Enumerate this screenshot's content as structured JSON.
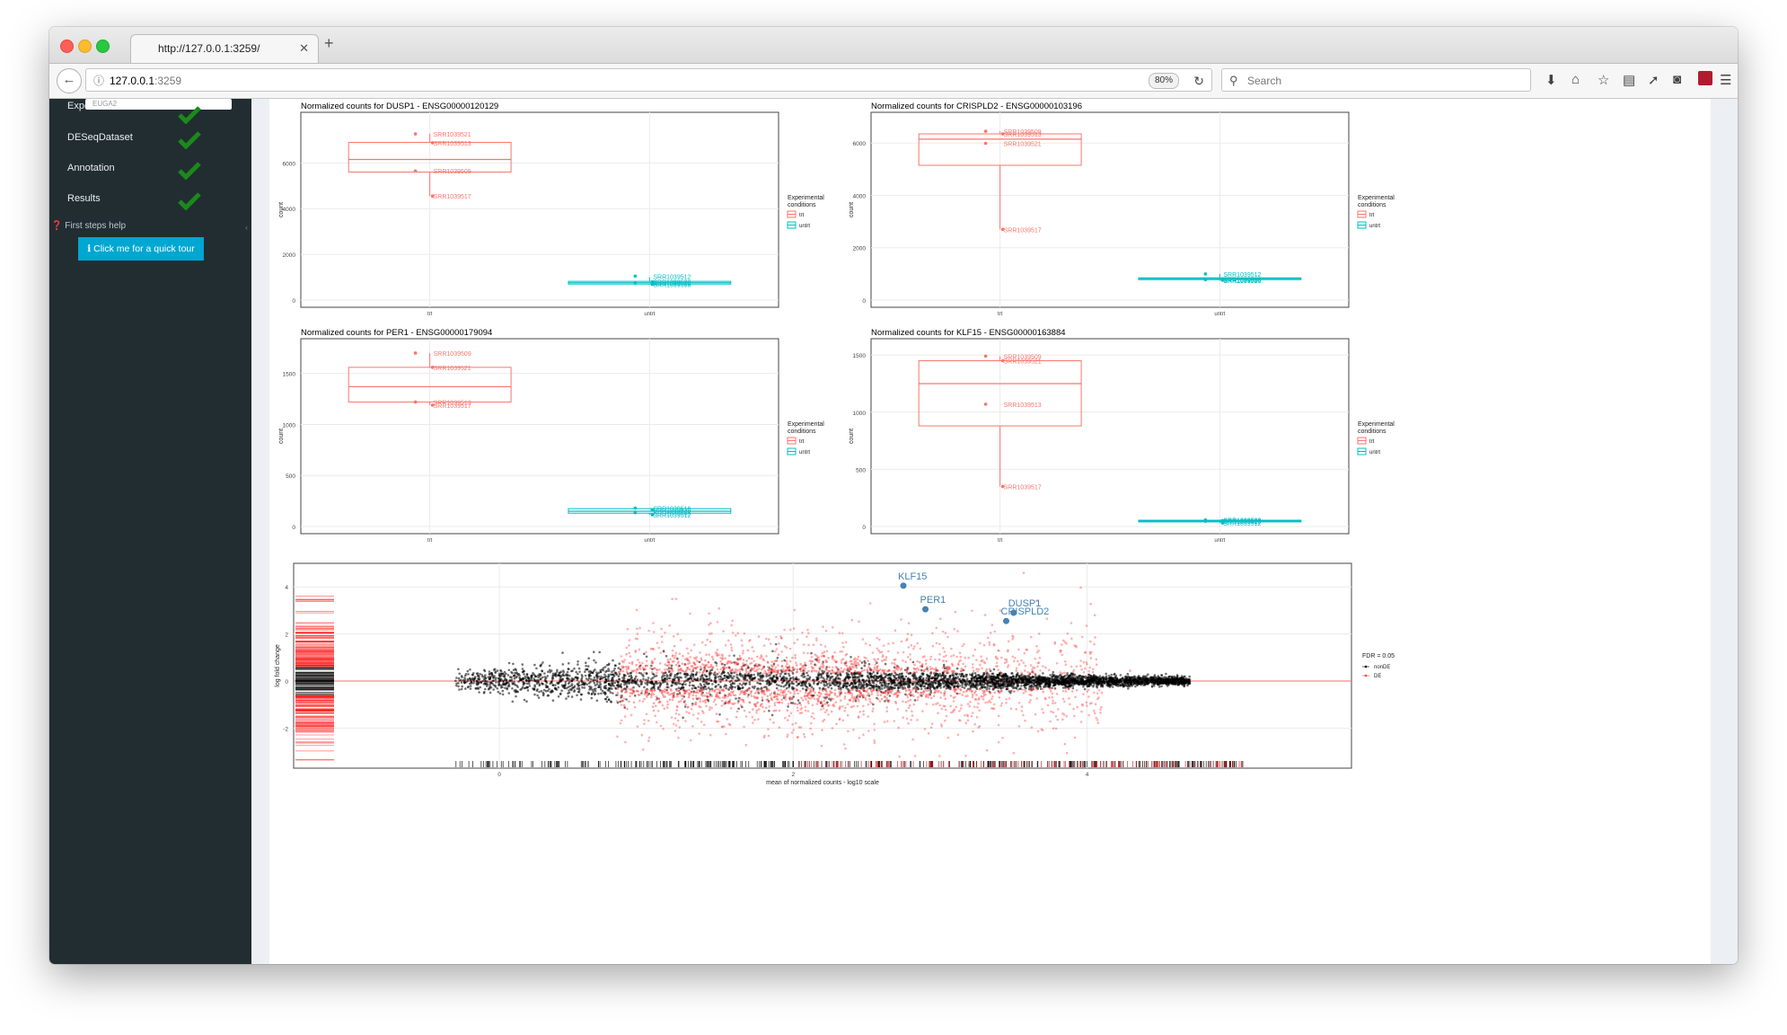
{
  "browser": {
    "tab_title": "http://127.0.0.1:3259/",
    "url_host": "127.0.0.1",
    "url_port": ":3259",
    "zoom": "80%",
    "search_placeholder": "Search"
  },
  "sidebar": {
    "hidden_item_prefix": "Expe",
    "tooltip_fragment": "EUGA2",
    "items": [
      {
        "label": "DESeqDataset"
      },
      {
        "label": "Annotation"
      },
      {
        "label": "Results"
      }
    ],
    "help_label": "First steps help",
    "tour_button": "Click me for a quick tour"
  },
  "colors": {
    "trt": "#f8766d",
    "untrt": "#00bfc4",
    "sidebar": "#222d32",
    "tour_button": "#00a7d0",
    "highlight": "#4682b4"
  },
  "chart_data": [
    {
      "type": "box",
      "title": "Normalized counts for DUSP1 - ENSG00000120129",
      "ylabel": "count",
      "categories": [
        "trt",
        "untrt"
      ],
      "yticks": [
        0,
        2000,
        4000,
        6000
      ],
      "ylim": [
        0,
        7900
      ],
      "legend_title": "Experimental\nconditions",
      "boxes": [
        {
          "group": "trt",
          "q1": 5600,
          "median": 6150,
          "q3": 6900,
          "min": 4550,
          "max": 7280
        },
        {
          "group": "untrt",
          "q1": 700,
          "median": 760,
          "q3": 820,
          "min": 680,
          "max": 1000
        }
      ],
      "points": [
        {
          "group": "trt",
          "y": 7270,
          "label": "SRR1039521"
        },
        {
          "group": "trt",
          "y": 6880,
          "label": "SRR1039513"
        },
        {
          "group": "trt",
          "y": 5650,
          "label": "SRR1039509"
        },
        {
          "group": "trt",
          "y": 4550,
          "label": "SRR1039517"
        },
        {
          "group": "untrt",
          "y": 1050,
          "label": "SRR1039512"
        },
        {
          "group": "untrt",
          "y": 800,
          "label": "SRR1039520"
        },
        {
          "group": "untrt",
          "y": 740,
          "label": "SRR1039516"
        },
        {
          "group": "untrt",
          "y": 690,
          "label": "SRR1039508"
        }
      ]
    },
    {
      "type": "box",
      "title": "Normalized counts for CRISPLD2 - ENSG00000103196",
      "ylabel": "count",
      "categories": [
        "trt",
        "untrt"
      ],
      "yticks": [
        0,
        2000,
        4000,
        6000
      ],
      "ylim": [
        0,
        6900
      ],
      "legend_title": "Experimental\nconditions",
      "boxes": [
        {
          "group": "trt",
          "q1": 5150,
          "median": 6150,
          "q3": 6350,
          "min": 2700,
          "max": 6450
        },
        {
          "group": "untrt",
          "q1": 780,
          "median": 820,
          "q3": 850,
          "min": 740,
          "max": 1000
        }
      ],
      "points": [
        {
          "group": "trt",
          "y": 6450,
          "label": "SRR1039509"
        },
        {
          "group": "trt",
          "y": 6350,
          "label": "SRR1039513"
        },
        {
          "group": "trt",
          "y": 5990,
          "label": "SRR1039521"
        },
        {
          "group": "trt",
          "y": 2700,
          "label": "SRR1039517"
        },
        {
          "group": "untrt",
          "y": 1000,
          "label": "SRR1039512"
        },
        {
          "group": "untrt",
          "y": 810,
          "label": "SRR1039516"
        },
        {
          "group": "untrt",
          "y": 780,
          "label": "SRR1039508"
        },
        {
          "group": "untrt",
          "y": 760,
          "label": "SRR1039520"
        }
      ]
    },
    {
      "type": "box",
      "title": "Normalized counts for PER1 - ENSG00000179094",
      "ylabel": "count",
      "categories": [
        "trt",
        "untrt"
      ],
      "yticks": [
        0,
        500,
        1000,
        1500
      ],
      "ylim": [
        0,
        1770
      ],
      "legend_title": "Experimental\nconditions",
      "boxes": [
        {
          "group": "trt",
          "q1": 1220,
          "median": 1370,
          "q3": 1560,
          "min": 1190,
          "max": 1700
        },
        {
          "group": "untrt",
          "q1": 130,
          "median": 150,
          "q3": 175,
          "min": 115,
          "max": 180
        }
      ],
      "points": [
        {
          "group": "trt",
          "y": 1700,
          "label": "SRR1039509"
        },
        {
          "group": "trt",
          "y": 1560,
          "label": "SRR1039521"
        },
        {
          "group": "trt",
          "y": 1220,
          "label": "SRR1039513"
        },
        {
          "group": "trt",
          "y": 1190,
          "label": "SRR1039517"
        },
        {
          "group": "untrt",
          "y": 180,
          "label": "SRR1039516"
        },
        {
          "group": "untrt",
          "y": 165,
          "label": "SRR1039520"
        },
        {
          "group": "untrt",
          "y": 135,
          "label": "SRR1039508"
        },
        {
          "group": "untrt",
          "y": 115,
          "label": "SRR1039512"
        }
      ]
    },
    {
      "type": "box",
      "title": "Normalized counts for KLF15 - ENSG00000163884",
      "ylabel": "count",
      "categories": [
        "trt",
        "untrt"
      ],
      "yticks": [
        0,
        500,
        1000,
        1500
      ],
      "ylim": [
        0,
        1580
      ],
      "legend_title": "Experimental\nconditions",
      "boxes": [
        {
          "group": "trt",
          "q1": 880,
          "median": 1250,
          "q3": 1450,
          "min": 350,
          "max": 1490
        },
        {
          "group": "untrt",
          "q1": 40,
          "median": 48,
          "q3": 55,
          "min": 30,
          "max": 60
        }
      ],
      "points": [
        {
          "group": "trt",
          "y": 1490,
          "label": "SRR1039509"
        },
        {
          "group": "trt",
          "y": 1450,
          "label": "SRR1039521"
        },
        {
          "group": "trt",
          "y": 1070,
          "label": "SRR1039513"
        },
        {
          "group": "trt",
          "y": 350,
          "label": "SRR1039517"
        },
        {
          "group": "untrt",
          "y": 58,
          "label": "SRR1039508"
        },
        {
          "group": "untrt",
          "y": 52,
          "label": "SRR1039520"
        },
        {
          "group": "untrt",
          "y": 46,
          "label": "SRR1039516"
        },
        {
          "group": "untrt",
          "y": 30,
          "label": "SRR1039512"
        }
      ]
    },
    {
      "type": "scatter",
      "title": "",
      "xlabel": "mean of normalized counts - log10 scale",
      "ylabel": "log fold change",
      "xticks": [
        0,
        2,
        4
      ],
      "yticks": [
        -2,
        0,
        2,
        4
      ],
      "xlim": [
        -1.4,
        5.8
      ],
      "ylim": [
        -3.7,
        5.0
      ],
      "legend_title": "FDR = 0.05",
      "legend_entries": [
        "nonDE",
        "DE"
      ],
      "highlighted": [
        {
          "x": 2.75,
          "y": 4.05,
          "label": "KLF15"
        },
        {
          "x": 2.9,
          "y": 3.05,
          "label": "PER1"
        },
        {
          "x": 3.5,
          "y": 2.9,
          "label": "DUSP1"
        },
        {
          "x": 3.45,
          "y": 2.55,
          "label": "CRISPLD2"
        }
      ]
    }
  ]
}
